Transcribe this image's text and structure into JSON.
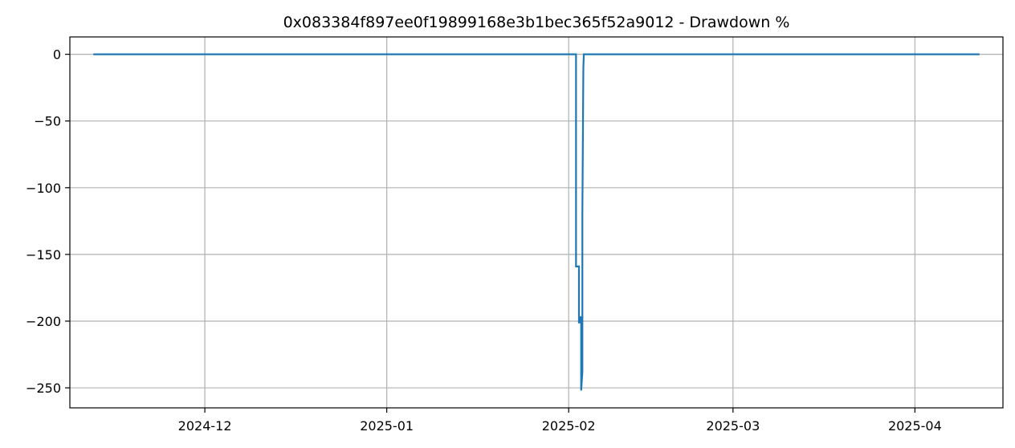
{
  "chart_data": {
    "type": "line",
    "title": "0x083384f897ee0f19899168e3b1bec365f52a9012 - Drawdown %",
    "xlabel": "",
    "ylabel": "",
    "x_axis_kind": "date",
    "xlim": [
      "2024-11-08",
      "2025-04-16"
    ],
    "ylim": [
      -265,
      13
    ],
    "grid": true,
    "x_ticks": [
      {
        "value": "2024-12-01",
        "label": "2024-12"
      },
      {
        "value": "2025-01-01",
        "label": "2025-01"
      },
      {
        "value": "2025-02-01",
        "label": "2025-02"
      },
      {
        "value": "2025-03-01",
        "label": "2025-03"
      },
      {
        "value": "2025-04-01",
        "label": "2025-04"
      }
    ],
    "y_ticks": [
      {
        "value": 0,
        "label": "0"
      },
      {
        "value": -50,
        "label": "−50"
      },
      {
        "value": -100,
        "label": "−100"
      },
      {
        "value": -150,
        "label": "−150"
      },
      {
        "value": -200,
        "label": "−200"
      },
      {
        "value": -250,
        "label": "−250"
      }
    ],
    "series": [
      {
        "color": "#1f77b4",
        "points": [
          {
            "x": "2024-11-12T00:00",
            "y": 0
          },
          {
            "x": "2025-02-02T06:00",
            "y": 0
          },
          {
            "x": "2025-02-02T06:00",
            "y": -159
          },
          {
            "x": "2025-02-02T18:00",
            "y": -159
          },
          {
            "x": "2025-02-02T18:00",
            "y": -201
          },
          {
            "x": "2025-02-03T00:00",
            "y": -201
          },
          {
            "x": "2025-02-03T00:00",
            "y": -197
          },
          {
            "x": "2025-02-03T03:00",
            "y": -197
          },
          {
            "x": "2025-02-03T03:00",
            "y": -252
          },
          {
            "x": "2025-02-03T08:00",
            "y": -238
          },
          {
            "x": "2025-02-03T08:00",
            "y": -120
          },
          {
            "x": "2025-02-03T12:00",
            "y": -10
          },
          {
            "x": "2025-02-03T14:00",
            "y": 0
          },
          {
            "x": "2025-04-12T00:00",
            "y": 0
          }
        ]
      }
    ]
  }
}
